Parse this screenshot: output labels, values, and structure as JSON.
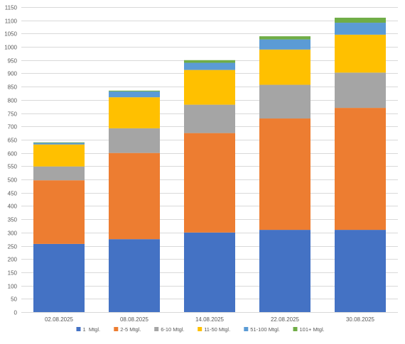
{
  "chart_data": {
    "type": "bar",
    "stacked": true,
    "title": "",
    "xlabel": "",
    "ylabel": "",
    "categories": [
      "02.08.2025",
      "08.08.2025",
      "14.08.2025",
      "22.08.2025",
      "30.08.2025"
    ],
    "ylim": [
      0,
      1150
    ],
    "yticks": [
      0,
      50,
      100,
      150,
      200,
      250,
      300,
      350,
      400,
      450,
      500,
      550,
      600,
      650,
      700,
      750,
      800,
      850,
      900,
      950,
      1000,
      1050,
      1100,
      1150
    ],
    "grid": true,
    "legend_position": "bottom",
    "series": [
      {
        "name": "1  Mtgl.",
        "color": "#4472C4",
        "values": [
          257,
          275,
          300,
          310,
          310
        ]
      },
      {
        "name": "2-5 Mtgl.",
        "color": "#ED7D31",
        "values": [
          240,
          325,
          375,
          420,
          460
        ]
      },
      {
        "name": "6-10 Mtgl.",
        "color": "#A5A5A5",
        "values": [
          52,
          93,
          107,
          127,
          133
        ]
      },
      {
        "name": "11-50 Mtgl.",
        "color": "#FFC000",
        "values": [
          83,
          117,
          131,
          133,
          143
        ]
      },
      {
        "name": "51-100 Mtgl.",
        "color": "#5B9BD5",
        "values": [
          6,
          22,
          27,
          38,
          45
        ]
      },
      {
        "name": "101+ Mtgl.",
        "color": "#70AD47",
        "values": [
          2,
          3,
          10,
          12,
          19
        ]
      }
    ]
  }
}
